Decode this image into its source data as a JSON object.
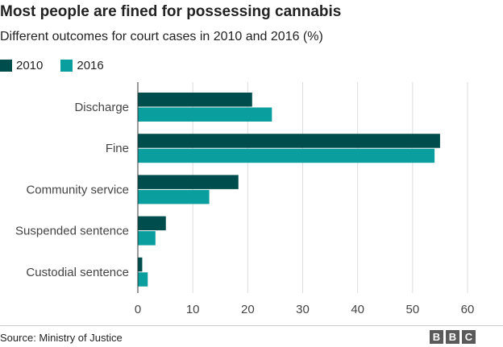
{
  "chart_data": {
    "type": "bar",
    "orientation": "horizontal",
    "title": "Most people are fined for possessing cannabis",
    "subtitle": "Different outcomes for court cases in 2010 and 2016 (%)",
    "categories": [
      "Discharge",
      "Fine",
      "Community service",
      "Suspended sentence",
      "Custodial sentence"
    ],
    "series": [
      {
        "name": "2010",
        "color": "#004d4d",
        "values": [
          20.8,
          55.0,
          18.3,
          5.1,
          0.8
        ]
      },
      {
        "name": "2016",
        "color": "#0a9e9e",
        "values": [
          24.4,
          54.0,
          13.0,
          3.2,
          1.8
        ]
      }
    ],
    "x_ticks": [
      0,
      10,
      20,
      30,
      40,
      50,
      60
    ],
    "xlim": [
      0,
      60
    ],
    "grid": true,
    "legend_position": "top-left"
  },
  "footer": {
    "source": "Source: Ministry of Justice",
    "logo_letters": [
      "B",
      "B",
      "C"
    ]
  }
}
